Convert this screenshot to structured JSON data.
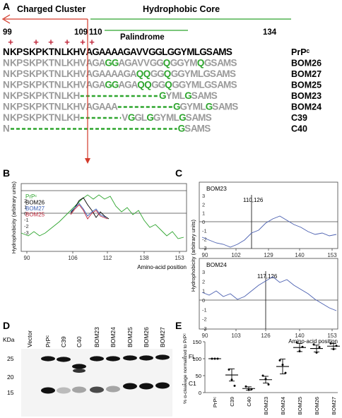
{
  "panel_a": {
    "letter": "A",
    "region_left": "Charged Cluster",
    "region_right": "Hydrophobic Core",
    "palindrome": "Palindrome",
    "positions": [
      "99",
      "109",
      "110",
      "134"
    ],
    "plus_sign": "+",
    "rows": [
      {
        "seq": "NKPSKPKTNLKHVAGAAAAGAVVGGLGGYMLGSAMS",
        "label": "PrPᶜ"
      },
      {
        "seq": "NKPSKPKTNLKHVAGAGGAGAVVGGQGGYMQGSAMS",
        "label": "BOM26"
      },
      {
        "seq": "NKPSKPKTNLKHVAGAAAAGAQQGGQGGYMLGSAMS",
        "label": "BOM27"
      },
      {
        "seq": "NKPSKPKTNLKHVAGAGGAGAQQGGQGGYMLGSAMS",
        "label": "BOM25"
      },
      {
        "seq": "NKPSKPKTNLKH-----------------GYMLGSAMS",
        "label": "BOM23"
      },
      {
        "seq": "NKPSKPKTNLKHVAGAAA------------GGYMLGSAMS",
        "label": "BOM24"
      },
      {
        "seq": "NKPSKPKTNLKH---------VGGLGGYMLGSAMS",
        "label": "C39"
      },
      {
        "seq": "N------------------------------------GSAMS",
        "label": "C40"
      }
    ]
  },
  "panel_b": {
    "letter": "B",
    "ylabel": "Hydrophobicity (arbitrary units)",
    "xlabel": "Amino-acid position",
    "y_ticks": [
      "2",
      "1",
      "0",
      "-1",
      "-2",
      "-3"
    ],
    "x_ticks": [
      "90",
      "106",
      "112",
      "138",
      "153"
    ],
    "legend": [
      {
        "name": "PrPᶜ",
        "color": "#2ea52e"
      },
      {
        "name": "BOM26",
        "color": "#000000"
      },
      {
        "name": "BOM27",
        "color": "#3a5fb5"
      },
      {
        "name": "BOM25",
        "color": "#c0283c"
      }
    ]
  },
  "panel_c": {
    "letter": "C",
    "ylabel": "Hydrophobicity (arbitrary units)",
    "xlabel": "Amino-acid position",
    "line_color": "#4a5fb0",
    "top": {
      "name": "BOM23",
      "marker": "110,126",
      "y_ticks": [
        "3",
        "2",
        "1",
        "0",
        "-1",
        "-2",
        "-3"
      ],
      "x_ticks": [
        "90",
        "102",
        "129",
        "140",
        "153"
      ]
    },
    "bottom": {
      "name": "BOM24",
      "marker": "117,126",
      "y_ticks": [
        "3",
        "2",
        "1",
        "0",
        "-1",
        "-2",
        "-3"
      ],
      "x_ticks": [
        "90",
        "103",
        "126",
        "140",
        "153"
      ]
    }
  },
  "panel_d": {
    "letter": "D",
    "kda": "KDa",
    "lanes": [
      "Vector",
      "PrPᶜ",
      "C39",
      "C40",
      "BOM23",
      "BOM24",
      "BOM25",
      "BOM26",
      "BOM27"
    ],
    "markers": [
      "25",
      "20",
      "15"
    ],
    "fl": "FL",
    "c1": "C1"
  },
  "panel_e": {
    "letter": "E",
    "ylabel": "% α-cleavage normalized to PrPᶜ",
    "y_ticks": [
      "0",
      "50",
      "100",
      "150"
    ]
  },
  "chart_data": [
    {
      "type": "dot",
      "title": "",
      "xlabel": "",
      "ylabel": "% α-cleavage normalized to PrPᶜ",
      "ylim": [
        0,
        150
      ],
      "categories": [
        "PrPᶜ",
        "C39",
        "C40",
        "BOM23",
        "BOM24",
        "BOM25",
        "BOM26",
        "BOM27"
      ],
      "means": [
        100,
        52,
        12,
        38,
        77,
        133,
        130,
        137
      ],
      "sem": [
        0,
        18,
        5,
        10,
        22,
        12,
        10,
        8
      ],
      "points": [
        [
          100,
          100,
          100
        ],
        [
          68,
          38,
          20
        ],
        [
          18,
          8,
          10
        ],
        [
          50,
          40,
          24
        ],
        [
          95,
          82,
          58
        ],
        [
          148,
          122,
          135
        ],
        [
          142,
          118,
          134
        ],
        [
          145,
          128,
          138
        ]
      ]
    }
  ]
}
